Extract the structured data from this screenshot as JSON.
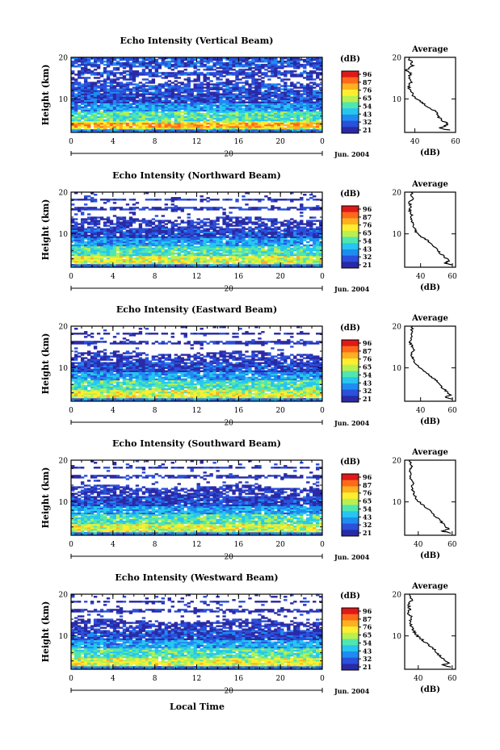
{
  "figure": {
    "xlabel": "Local Time",
    "date_label": "Jun. 2004",
    "ylabel": "Height (km)",
    "colorbar_unit": "(dB)",
    "colorbar_ticks": [
      "96",
      "87",
      "76",
      "65",
      "54",
      "43",
      "32",
      "21"
    ],
    "colorbar_colors": [
      "#e01818",
      "#ff6a1a",
      "#ffb020",
      "#ffee30",
      "#b8f050",
      "#50e6b0",
      "#26c6f0",
      "#1e8cf0",
      "#2a50dc",
      "#2a2aa6"
    ],
    "avg_title": "Average",
    "avg_xlabel": "(dB)",
    "time_ticks": [
      "0",
      "4",
      "8",
      "12",
      "16",
      "20",
      "0"
    ],
    "day_label": "20"
  },
  "chart_data": [
    {
      "type": "heatmap",
      "title": "Echo Intensity (Vertical Beam)",
      "xlabel": "",
      "ylabel": "Height (km)",
      "x_ticks": [
        "0",
        "4",
        "8",
        "12",
        "16",
        "20",
        "0"
      ],
      "y_ticks": [
        "10",
        "20"
      ],
      "ylim": [
        2,
        20
      ],
      "colorbar": {
        "label": "(dB)",
        "ticks": [
          96,
          87,
          76,
          65,
          54,
          43,
          32,
          21
        ]
      },
      "average_profile": {
        "title": "Average",
        "xlabel": "(dB)",
        "x_ticks": [
          "40",
          "60"
        ],
        "xlim": [
          35,
          60
        ],
        "y_ticks": [
          "10",
          "20"
        ],
        "points": [
          [
            58,
            2.5
          ],
          [
            52,
            3
          ],
          [
            55,
            3.5
          ],
          [
            56,
            4.2
          ],
          [
            53,
            5
          ],
          [
            51,
            6
          ],
          [
            50,
            7
          ],
          [
            47,
            8
          ],
          [
            44,
            9
          ],
          [
            41,
            10
          ],
          [
            39,
            11
          ],
          [
            38,
            12
          ],
          [
            37,
            13
          ],
          [
            38,
            14
          ],
          [
            37,
            15
          ],
          [
            38,
            16
          ],
          [
            36,
            17
          ],
          [
            39,
            18
          ],
          [
            38,
            19
          ],
          [
            37,
            20
          ]
        ]
      }
    },
    {
      "type": "heatmap",
      "title": "Echo Intensity (Northward Beam)",
      "xlabel": "",
      "ylabel": "Height (km)",
      "x_ticks": [
        "0",
        "4",
        "8",
        "12",
        "16",
        "20",
        "0"
      ],
      "y_ticks": [
        "10",
        "20"
      ],
      "ylim": [
        2,
        20
      ],
      "colorbar": {
        "label": "(dB)",
        "ticks": [
          96,
          87,
          76,
          65,
          54,
          43,
          32,
          21
        ]
      },
      "average_profile": {
        "title": "Average",
        "xlabel": "(dB)",
        "x_ticks": [
          "40",
          "60"
        ],
        "xlim": [
          30,
          62
        ],
        "y_ticks": [
          "10",
          "20"
        ],
        "points": [
          [
            60,
            2.5
          ],
          [
            55,
            3
          ],
          [
            58,
            3.5
          ],
          [
            55,
            4.5
          ],
          [
            52,
            5.5
          ],
          [
            50,
            6.5
          ],
          [
            47,
            7.5
          ],
          [
            44,
            8.5
          ],
          [
            40,
            9.5
          ],
          [
            37,
            10.5
          ],
          [
            36,
            11.5
          ],
          [
            35,
            12.5
          ],
          [
            34,
            13.5
          ],
          [
            35,
            14.5
          ],
          [
            33,
            15.5
          ],
          [
            34,
            16.5
          ],
          [
            33,
            17.5
          ],
          [
            35,
            18.5
          ],
          [
            34,
            20
          ]
        ]
      }
    },
    {
      "type": "heatmap",
      "title": "Echo Intensity (Eastward Beam)",
      "xlabel": "",
      "ylabel": "Height (km)",
      "x_ticks": [
        "0",
        "4",
        "8",
        "12",
        "16",
        "20",
        "0"
      ],
      "y_ticks": [
        "10",
        "20"
      ],
      "ylim": [
        2,
        20
      ],
      "colorbar": {
        "label": "(dB)",
        "ticks": [
          96,
          87,
          76,
          65,
          54,
          43,
          32,
          21
        ]
      },
      "average_profile": {
        "title": "Average",
        "xlabel": "(dB)",
        "x_ticks": [
          "40",
          "60"
        ],
        "xlim": [
          30,
          62
        ],
        "y_ticks": [
          "10",
          "20"
        ],
        "points": [
          [
            61,
            2.5
          ],
          [
            55,
            3
          ],
          [
            59,
            3.5
          ],
          [
            56,
            4.5
          ],
          [
            53,
            5.5
          ],
          [
            51,
            6.5
          ],
          [
            48,
            7.5
          ],
          [
            45,
            8.5
          ],
          [
            41,
            9.5
          ],
          [
            38,
            10.5
          ],
          [
            36,
            11.5
          ],
          [
            35,
            12.5
          ],
          [
            34,
            13.5
          ],
          [
            36,
            14.5
          ],
          [
            34,
            15.5
          ],
          [
            33,
            16.5
          ],
          [
            35,
            17.5
          ],
          [
            34,
            18.5
          ],
          [
            35,
            20
          ]
        ]
      }
    },
    {
      "type": "heatmap",
      "title": "Echo Intensity (Southward Beam)",
      "xlabel": "",
      "ylabel": "Height (km)",
      "x_ticks": [
        "0",
        "4",
        "8",
        "12",
        "16",
        "20",
        "0"
      ],
      "y_ticks": [
        "10",
        "20"
      ],
      "ylim": [
        2,
        20
      ],
      "colorbar": {
        "label": "(dB)",
        "ticks": [
          96,
          87,
          76,
          65,
          54,
          43,
          32,
          21
        ]
      },
      "average_profile": {
        "title": "Average",
        "xlabel": "(dB)",
        "x_ticks": [
          "40",
          "60"
        ],
        "xlim": [
          32,
          62
        ],
        "y_ticks": [
          "10",
          "20"
        ],
        "points": [
          [
            60,
            2.5
          ],
          [
            54,
            3
          ],
          [
            58,
            3.5
          ],
          [
            55,
            4.5
          ],
          [
            53,
            5.5
          ],
          [
            50,
            6.5
          ],
          [
            48,
            7.5
          ],
          [
            45,
            8.5
          ],
          [
            42,
            9.5
          ],
          [
            39,
            10.5
          ],
          [
            38,
            11.5
          ],
          [
            37,
            12.5
          ],
          [
            36,
            13.5
          ],
          [
            37,
            14.5
          ],
          [
            35,
            15.5
          ],
          [
            36,
            16.5
          ],
          [
            35,
            17.5
          ],
          [
            36,
            18.5
          ],
          [
            35,
            20
          ]
        ]
      }
    },
    {
      "type": "heatmap",
      "title": "Echo Intensity (Westward Beam)",
      "xlabel": "Local Time",
      "ylabel": "Height (km)",
      "x_ticks": [
        "0",
        "4",
        "8",
        "12",
        "16",
        "20",
        "0"
      ],
      "y_ticks": [
        "10",
        "20"
      ],
      "ylim": [
        2,
        20
      ],
      "colorbar": {
        "label": "(dB)",
        "ticks": [
          96,
          87,
          76,
          65,
          54,
          43,
          32,
          21
        ]
      },
      "average_profile": {
        "title": "Average",
        "xlabel": "(dB)",
        "x_ticks": [
          "40",
          "60"
        ],
        "xlim": [
          32,
          62
        ],
        "y_ticks": [
          "10",
          "20"
        ],
        "points": [
          [
            60,
            2.5
          ],
          [
            54,
            3
          ],
          [
            58,
            3.5
          ],
          [
            55,
            4.5
          ],
          [
            52,
            5.5
          ],
          [
            50,
            6.5
          ],
          [
            47,
            7.5
          ],
          [
            44,
            8.5
          ],
          [
            41,
            9.5
          ],
          [
            38,
            10.5
          ],
          [
            37,
            11.5
          ],
          [
            36,
            12.5
          ],
          [
            35,
            13.5
          ],
          [
            36,
            14.5
          ],
          [
            34,
            15.5
          ],
          [
            35,
            16.5
          ],
          [
            34,
            17.5
          ],
          [
            36,
            18.5
          ],
          [
            35,
            20
          ]
        ]
      }
    }
  ]
}
